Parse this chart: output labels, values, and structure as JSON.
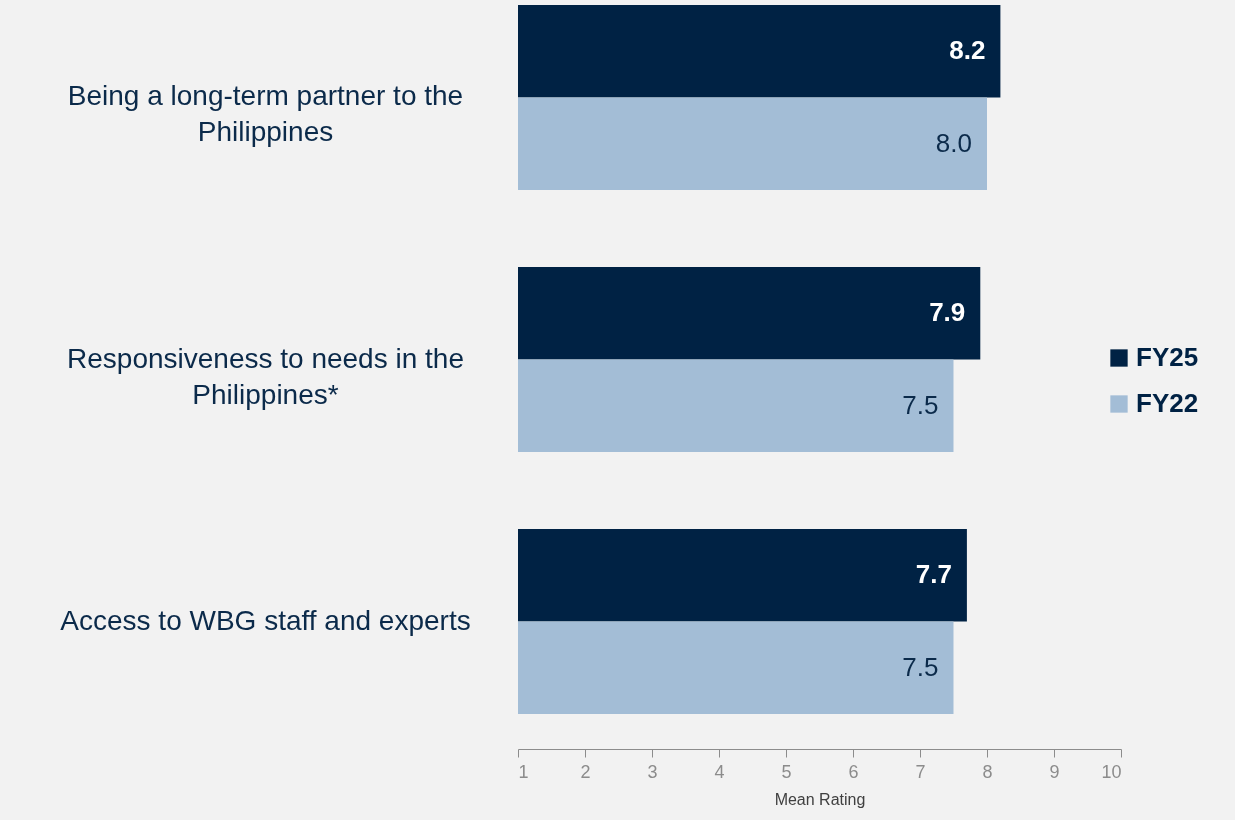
{
  "chart_data": {
    "type": "bar",
    "orientation": "horizontal",
    "categories": [
      "Being a long-term partner to the Philippines",
      "Responsiveness to needs in the Philippines*",
      "Access to WBG staff and experts"
    ],
    "series": [
      {
        "name": "FY25",
        "color": "#002244",
        "values": [
          8.2,
          7.9,
          7.7
        ],
        "value_labels": [
          "8.2",
          "7.9",
          "7.7"
        ]
      },
      {
        "name": "FY22",
        "color": "#a3bdd6",
        "values": [
          8.0,
          7.5,
          7.5
        ],
        "value_labels": [
          "8.0",
          "7.5",
          "7.5"
        ]
      }
    ],
    "xlabel": "Mean Rating",
    "xlim": [
      1,
      10
    ],
    "xticks": [
      1,
      2,
      3,
      4,
      5,
      6,
      7,
      8,
      9,
      10
    ],
    "legend": "right",
    "grid": false
  }
}
